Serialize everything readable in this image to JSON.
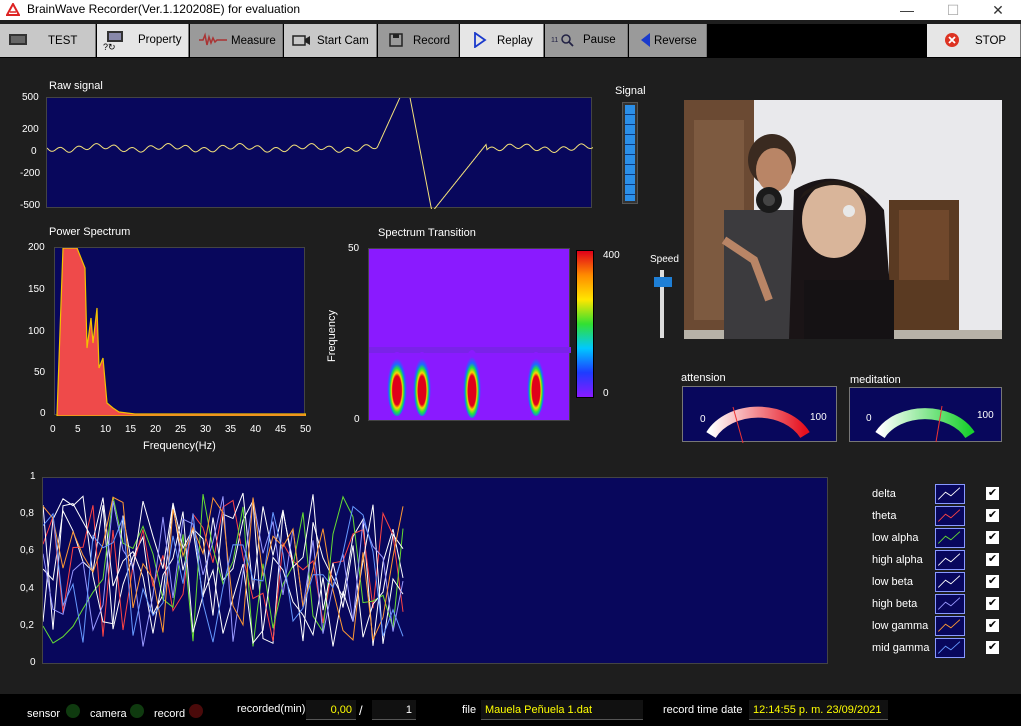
{
  "window": {
    "title": "BrainWave Recorder(Ver.1.120208E) for evaluation",
    "minimize": "—",
    "maximize": "☐",
    "close": "✕"
  },
  "toolbar": {
    "test": "TEST",
    "property": "Property",
    "measure": "Measure",
    "start_cam": "Start Cam",
    "record": "Record",
    "replay": "Replay",
    "pause": "Pause",
    "reverse": "Reverse",
    "stop": "STOP"
  },
  "raw_signal": {
    "title": "Raw signal",
    "yticks": [
      "500",
      "200",
      "0",
      "-200",
      "-500"
    ]
  },
  "signal_meter": {
    "title": "Signal",
    "level": 1.0
  },
  "power_spectrum": {
    "title": "Power Spectrum",
    "xlabel": "Frequency(Hz)",
    "xticks": [
      "0",
      "5",
      "10",
      "15",
      "20",
      "25",
      "30",
      "35",
      "40",
      "45",
      "50"
    ],
    "yticks": [
      "200",
      "150",
      "100",
      "50",
      "0"
    ]
  },
  "spectrum_transition": {
    "title": "Spectrum Transition",
    "ylabel": "Frequency",
    "yticks": [
      "50",
      "0"
    ],
    "colorbar_ticks": [
      "400",
      "0"
    ]
  },
  "speed": {
    "title": "Speed",
    "value": 0.9
  },
  "gauges": {
    "attension": {
      "title": "attension",
      "min": "0",
      "max": "100"
    },
    "meditation": {
      "title": "meditation",
      "min": "0",
      "max": "100"
    }
  },
  "waves": {
    "yticks": [
      "1",
      "0,8",
      "0,6",
      "0,4",
      "0,2",
      "0"
    ],
    "legend": [
      {
        "name": "delta",
        "color": "#ffffff",
        "checked": "✔"
      },
      {
        "name": "theta",
        "color": "#ff4444",
        "checked": "✔"
      },
      {
        "name": "low alpha",
        "color": "#66dd33",
        "checked": "✔"
      },
      {
        "name": "high alpha",
        "color": "#ffffff",
        "checked": "✔"
      },
      {
        "name": "low beta",
        "color": "#ffffff",
        "checked": "✔"
      },
      {
        "name": "high beta",
        "color": "#9999ff",
        "checked": "✔"
      },
      {
        "name": "low gamma",
        "color": "#ff9933",
        "checked": "✔"
      },
      {
        "name": "mid gamma",
        "color": "#6699ff",
        "checked": "✔"
      }
    ]
  },
  "status": {
    "sensor": "sensor",
    "camera": "camera",
    "record": "record",
    "recorded_label": "recorded(min)",
    "recorded_value": "0,00",
    "separator": "/",
    "recorded_total": "1",
    "file_label": "file",
    "file_value": "Mauela Peñuela 1.dat",
    "date_label": "record time date",
    "date_value": "12:14:55 p. m. 23/09/2021"
  }
}
